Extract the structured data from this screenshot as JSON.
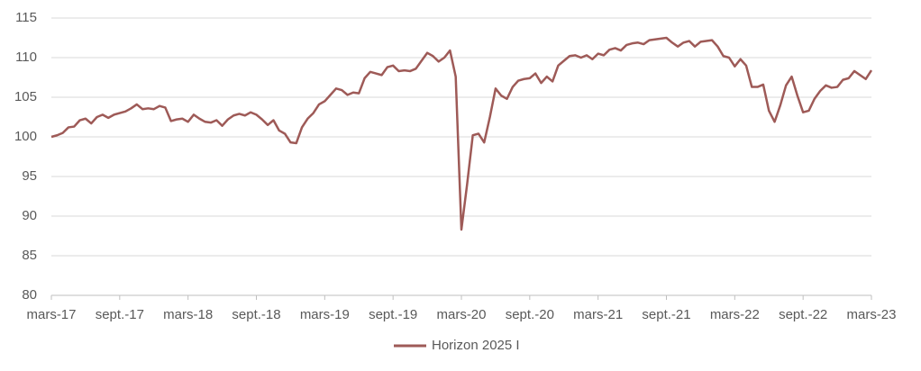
{
  "chart_data": {
    "type": "line",
    "categories": [
      "mars-17",
      null,
      null,
      null,
      null,
      null,
      null,
      null,
      null,
      null,
      null,
      null,
      "sept.-17",
      null,
      null,
      null,
      null,
      null,
      null,
      null,
      null,
      null,
      null,
      null,
      "mars-18",
      null,
      null,
      null,
      null,
      null,
      null,
      null,
      null,
      null,
      null,
      null,
      "sept.-18",
      null,
      null,
      null,
      null,
      null,
      null,
      null,
      null,
      null,
      null,
      null,
      "mars-19",
      null,
      null,
      null,
      null,
      null,
      null,
      null,
      null,
      null,
      null,
      null,
      "sept.-19",
      null,
      null,
      null,
      null,
      null,
      null,
      null,
      null,
      null,
      null,
      null,
      "mars-20",
      null,
      null,
      null,
      null,
      null,
      null,
      null,
      null,
      null,
      null,
      null,
      "sept.-20",
      null,
      null,
      null,
      null,
      null,
      null,
      null,
      null,
      null,
      null,
      null,
      "mars-21",
      null,
      null,
      null,
      null,
      null,
      null,
      null,
      null,
      null,
      null,
      null,
      "sept.-21",
      null,
      null,
      null,
      null,
      null,
      null,
      null,
      null,
      null,
      null,
      null,
      "mars-22",
      null,
      null,
      null,
      null,
      null,
      null,
      null,
      null,
      null,
      null,
      null,
      "sept.-22",
      null,
      null,
      null,
      null,
      null,
      null,
      null,
      null,
      null,
      null,
      null,
      "mars-23"
    ],
    "series": [
      {
        "name": "Horizon 2025 I",
        "color": "#9e5a57",
        "values": [
          100,
          100.2,
          100.5,
          101.2,
          101.3,
          102.1,
          102.3,
          101.7,
          102.5,
          102.8,
          102.4,
          102.8,
          103,
          103.2,
          103.6,
          104.1,
          103.5,
          103.6,
          103.5,
          103.9,
          103.7,
          102.0,
          102.2,
          102.3,
          101.9,
          102.8,
          102.3,
          101.9,
          101.8,
          102.1,
          101.4,
          102.2,
          102.7,
          102.9,
          102.7,
          103.1,
          102.8,
          102.2,
          101.5,
          102.1,
          100.8,
          100.4,
          99.3,
          99.2,
          101.2,
          102.3,
          103.0,
          104.1,
          104.5,
          105.3,
          106.1,
          105.9,
          105.3,
          105.6,
          105.5,
          107.4,
          108.2,
          108.0,
          107.8,
          108.8,
          109.0,
          108.3,
          108.4,
          108.3,
          108.6,
          109.6,
          110.6,
          110.2,
          109.5,
          110.0,
          110.9,
          107.6,
          88.3,
          94.0,
          100.2,
          100.4,
          99.3,
          102.5,
          106.1,
          105.2,
          104.8,
          106.3,
          107.1,
          107.3,
          107.4,
          108.0,
          106.8,
          107.6,
          107.0,
          109.0,
          109.6,
          110.2,
          110.3,
          110.0,
          110.3,
          109.8,
          110.5,
          110.3,
          111.0,
          111.2,
          110.9,
          111.6,
          111.8,
          111.9,
          111.7,
          112.2,
          112.3,
          112.4,
          112.5,
          111.9,
          111.4,
          111.9,
          112.1,
          111.4,
          112.0,
          112.1,
          112.2,
          111.4,
          110.2,
          110.0,
          108.9,
          109.8,
          109.0,
          106.3,
          106.3,
          106.6,
          103.3,
          101.9,
          104.0,
          106.5,
          107.6,
          105.2,
          103.1,
          103.3,
          104.8,
          105.8,
          106.5,
          106.2,
          106.3,
          107.2,
          107.4,
          108.3,
          107.8,
          107.3,
          108.4
        ]
      }
    ],
    "ylim": [
      80,
      115
    ],
    "yticks": [
      80,
      85,
      90,
      95,
      100,
      105,
      110,
      115
    ],
    "grid": true,
    "legend": "bottom"
  }
}
